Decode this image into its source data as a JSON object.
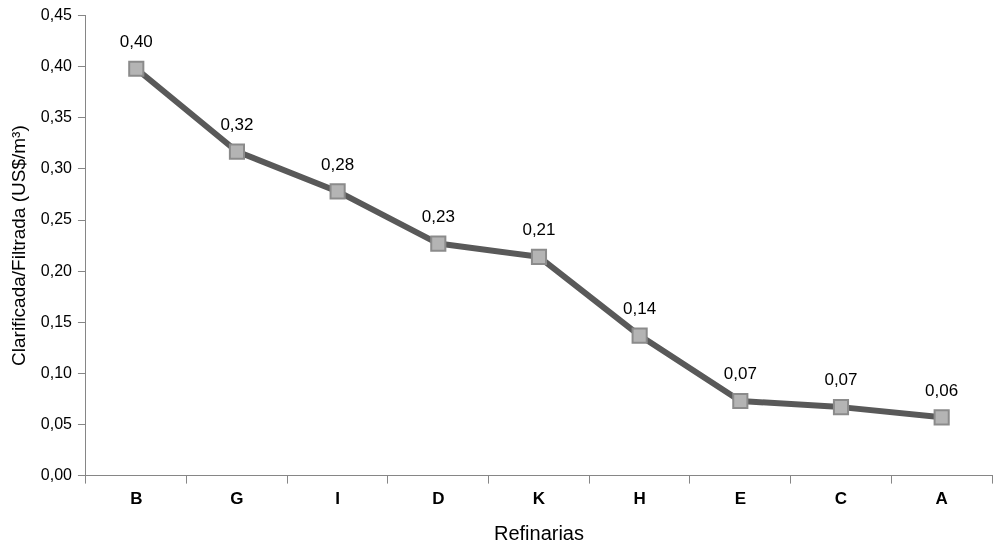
{
  "chart_data": {
    "type": "line",
    "xlabel": "Refinarias",
    "ylabel": "Clarificada/Filtrada (US$/m³)",
    "categories": [
      "B",
      "G",
      "I",
      "D",
      "K",
      "H",
      "E",
      "C",
      "A"
    ],
    "series": [
      {
        "color": "#595959",
        "values": [
          0.398,
          0.317,
          0.278,
          0.227,
          0.214,
          0.137,
          0.073,
          0.067,
          0.057
        ],
        "value_labels": [
          "0,40",
          "0,32",
          "0,28",
          "0,23",
          "0,21",
          "0,14",
          "0,07",
          "0,07",
          "0,06"
        ]
      }
    ],
    "ylim": [
      0,
      0.45
    ],
    "yticks": [
      {
        "value": 0,
        "label": "0,00"
      },
      {
        "value": 0.05,
        "label": "0,05"
      },
      {
        "value": 0.1,
        "label": "0,10"
      },
      {
        "value": 0.15,
        "label": "0,15"
      },
      {
        "value": 0.2,
        "label": "0,20"
      },
      {
        "value": 0.25,
        "label": "0,25"
      },
      {
        "value": 0.3,
        "label": "0,30"
      },
      {
        "value": 0.35,
        "label": "0,35"
      },
      {
        "value": 0.4,
        "label": "0,40"
      },
      {
        "value": 0.45,
        "label": "0,45"
      }
    ],
    "marker": "square",
    "grid": false,
    "legend": false
  }
}
